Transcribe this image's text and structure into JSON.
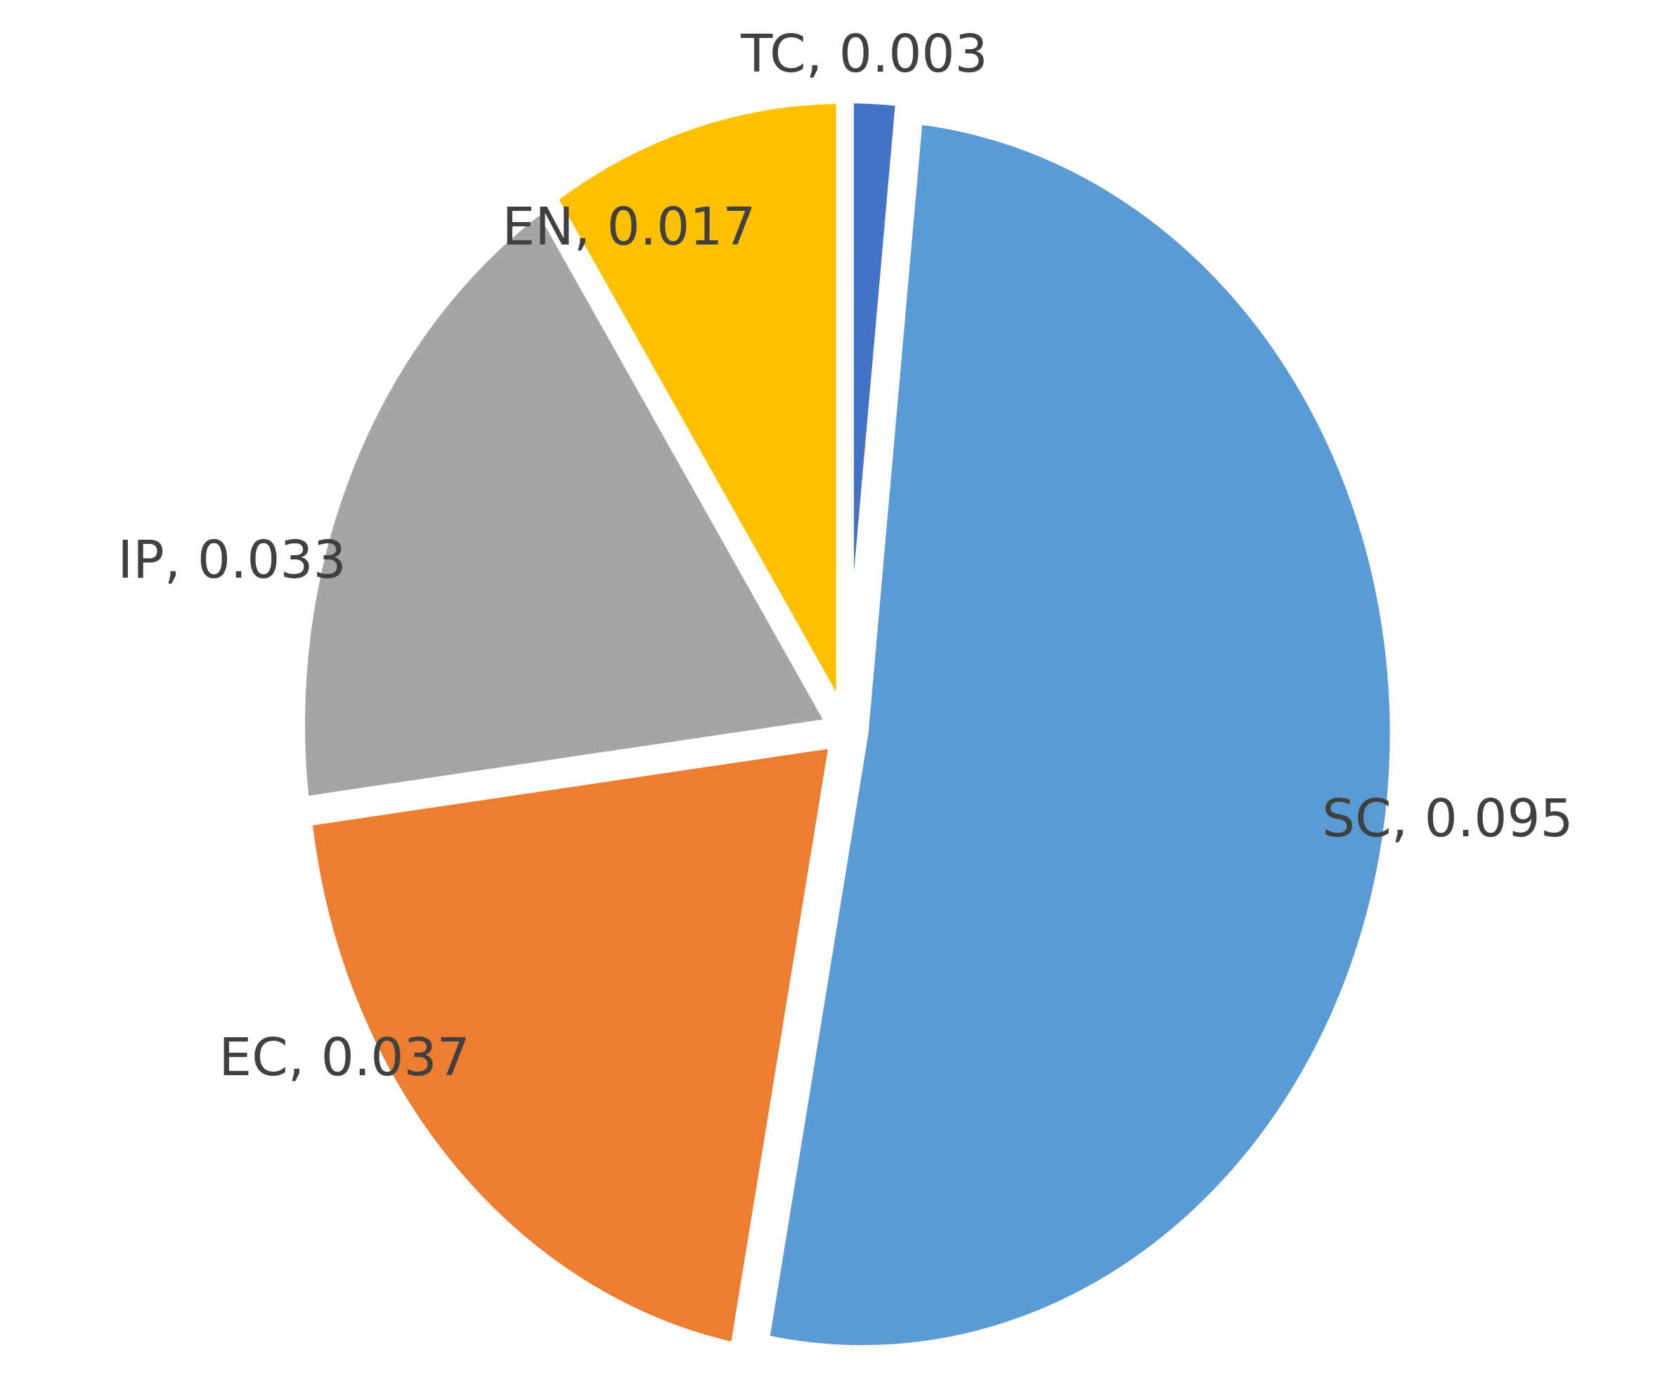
{
  "chart_data": {
    "type": "pie",
    "title": "",
    "start": "top",
    "direction": "clockwise",
    "slices": [
      {
        "key": "tc",
        "label": "TC, 0.003",
        "name": "TC",
        "value": 0.003,
        "color": "#4472C4"
      },
      {
        "key": "sc",
        "label": "SC, 0.095",
        "name": "SC",
        "value": 0.095,
        "color": "#5B9BD5"
      },
      {
        "key": "ec",
        "label": "EC, 0.037",
        "name": "EC",
        "value": 0.037,
        "color": "#ED7D31"
      },
      {
        "key": "ip",
        "label": "IP, 0.033",
        "name": "IP",
        "value": 0.033,
        "color": "#A5A5A5"
      },
      {
        "key": "en",
        "label": "EN, 0.017",
        "name": "EN",
        "value": 0.017,
        "color": "#FFC000"
      }
    ]
  }
}
